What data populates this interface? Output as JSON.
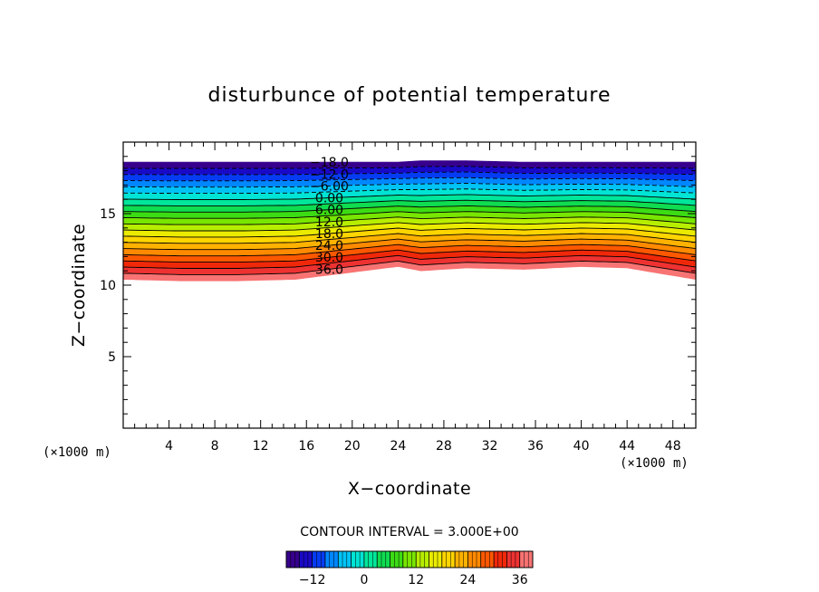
{
  "chart_data": {
    "type": "contour",
    "title": "disturbunce of potential temperature",
    "xlabel": "X−coordinate",
    "ylabel": "Z−coordinate",
    "x_unit_left": "(×1000 m)",
    "x_unit_right": "(×1000 m)",
    "xlim": [
      0,
      50
    ],
    "ylim": [
      0,
      20
    ],
    "x_ticks": [
      4,
      8,
      12,
      16,
      20,
      24,
      28,
      32,
      36,
      40,
      44,
      48
    ],
    "x_tick_labels": [
      "4",
      "8",
      "12",
      "16",
      "20",
      "24",
      "28",
      "32",
      "36",
      "40",
      "44",
      "48"
    ],
    "y_ticks": [
      5,
      10,
      15
    ],
    "y_tick_labels": [
      "5",
      "10",
      "15"
    ],
    "contour_interval_text": "CONTOUR INTERVAL = 3.000E+00",
    "contour_interval": 3,
    "level_range": [
      -18,
      39
    ],
    "level_labels": [
      {
        "value": -18,
        "text": "−18.0"
      },
      {
        "value": -12,
        "text": "−12.0"
      },
      {
        "value": -6,
        "text": "−6.00"
      },
      {
        "value": 0,
        "text": "0.00"
      },
      {
        "value": 6,
        "text": "6.00"
      },
      {
        "value": 12,
        "text": "12.0"
      },
      {
        "value": 18,
        "text": "18.0"
      },
      {
        "value": 24,
        "text": "24.0"
      },
      {
        "value": 30,
        "text": "30.0"
      },
      {
        "value": 36,
        "text": "36.0"
      }
    ],
    "negative_contours_dashed": true,
    "field": {
      "x": [
        0,
        5,
        10,
        15,
        20,
        22,
        24,
        26,
        30,
        35,
        40,
        44,
        47,
        50
      ],
      "z_bottom": [
        10.4,
        10.3,
        10.3,
        10.4,
        10.9,
        11.1,
        11.3,
        11.0,
        11.2,
        11.1,
        11.3,
        11.2,
        10.8,
        10.4
      ],
      "z_top": [
        18.6,
        18.6,
        18.6,
        18.6,
        18.6,
        18.6,
        18.6,
        18.7,
        18.7,
        18.6,
        18.6,
        18.6,
        18.6,
        18.6
      ],
      "value_at_bottom": 39,
      "value_at_top": -18
    },
    "colorbar": {
      "min": -18,
      "max": 39,
      "tick_values": [
        -12,
        0,
        12,
        24,
        36
      ],
      "tick_labels": [
        "−12",
        "0",
        "12",
        "24",
        "36"
      ]
    }
  }
}
